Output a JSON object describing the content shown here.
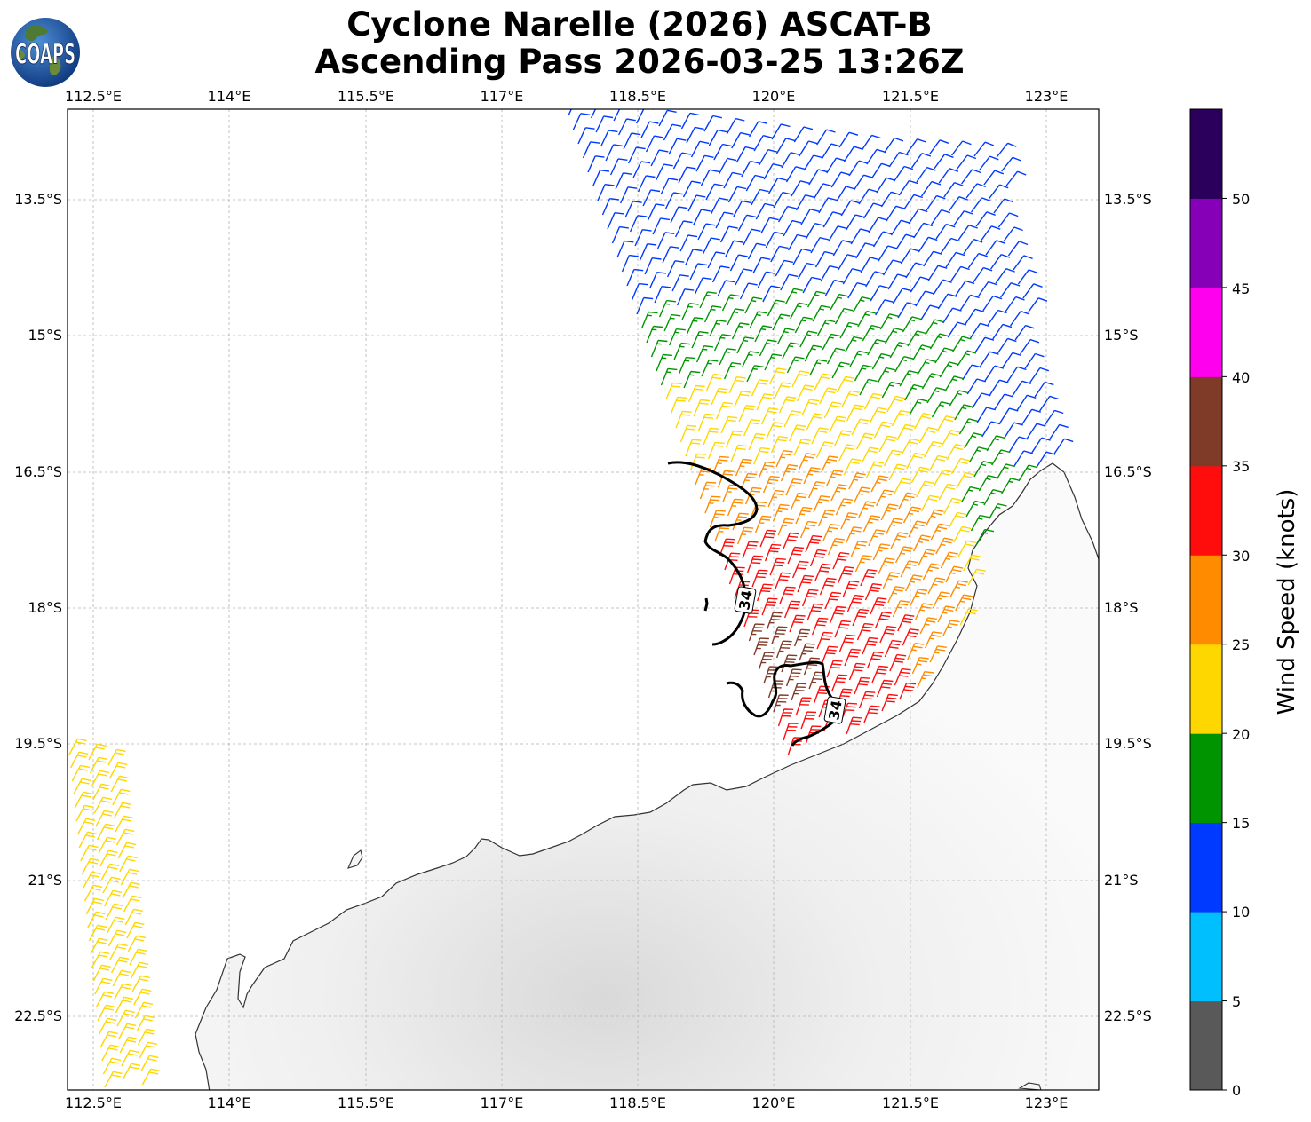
{
  "header": {
    "title_line1": "Cyclone Narelle (2026) ASCAT-B",
    "title_line2": "Ascending Pass 2026-03-25 13:26Z",
    "logo_text": "COAPS"
  },
  "map": {
    "lon_ticks": [
      "112.5°E",
      "114°E",
      "115.5°E",
      "117°E",
      "118.5°E",
      "120°E",
      "121.5°E",
      "123°E"
    ],
    "lat_ticks": [
      "13.5°S",
      "15°S",
      "16.5°S",
      "18°S",
      "19.5°S",
      "21°S",
      "22.5°S"
    ],
    "contour_label": "34",
    "contour_value_kt": 34
  },
  "colorbar": {
    "label": "Wind Speed (knots)",
    "ticks": [
      "0",
      "5",
      "10",
      "15",
      "20",
      "25",
      "30",
      "35",
      "40",
      "45",
      "50"
    ],
    "bins": [
      {
        "range": "0-5",
        "color": "#595959"
      },
      {
        "range": "5-10",
        "color": "#00bfff"
      },
      {
        "range": "10-15",
        "color": "#0039ff"
      },
      {
        "range": "15-20",
        "color": "#009500"
      },
      {
        "range": "20-25",
        "color": "#ffd700"
      },
      {
        "range": "25-30",
        "color": "#ff8c00"
      },
      {
        "range": "30-35",
        "color": "#ff0d0d"
      },
      {
        "range": "35-40",
        "color": "#803a28"
      },
      {
        "range": "40-45",
        "color": "#ff00ee"
      },
      {
        "range": "45-50",
        "color": "#8600b8"
      },
      {
        "range": "50+",
        "color": "#2a005c"
      }
    ]
  }
}
